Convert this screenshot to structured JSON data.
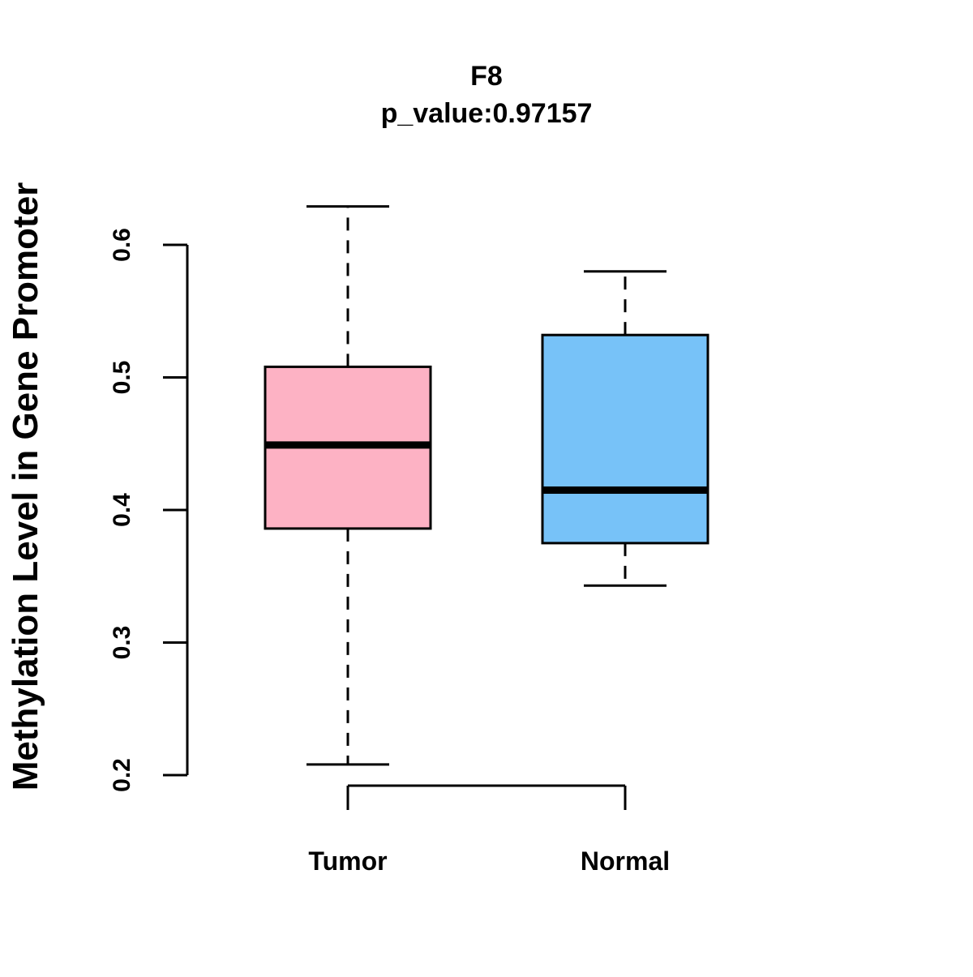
{
  "chart_data": {
    "type": "boxplot",
    "title": "F8",
    "subtitle": "p_value:0.97157",
    "xlabel": "",
    "ylabel": "Methylation Level in Gene Promoter",
    "ylim": [
      0.2,
      0.6
    ],
    "y_ticks": [
      0.2,
      0.3,
      0.4,
      0.5,
      0.6
    ],
    "y_tick_labels": [
      "0.2",
      "0.3",
      "0.4",
      "0.5",
      "0.6"
    ],
    "grid": false,
    "groups": [
      {
        "name": "Tumor",
        "color": "#FDB2C4",
        "whisker_low": 0.208,
        "q1": 0.386,
        "median": 0.449,
        "q3": 0.508,
        "whisker_high": 0.629
      },
      {
        "name": "Normal",
        "color": "#77C2F8",
        "whisker_low": 0.343,
        "q1": 0.375,
        "median": 0.415,
        "q3": 0.532,
        "whisker_high": 0.58
      }
    ]
  }
}
